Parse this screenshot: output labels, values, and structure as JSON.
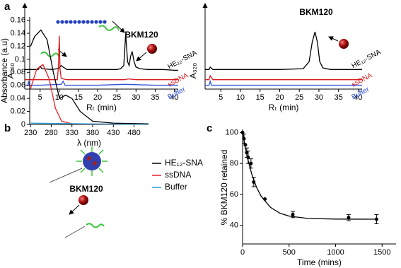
{
  "panel_labels": [
    "a",
    "b",
    "c"
  ],
  "chart_data": [
    {
      "type": "line",
      "xlabel": "Rₜ (min)",
      "ylabel": "A₂₆₀",
      "xlim": [
        1,
        41
      ],
      "ylim": [
        0,
        1
      ],
      "xticks": [
        5,
        10,
        15,
        20,
        25,
        30,
        35,
        40
      ],
      "annotations": [
        "BKM120"
      ],
      "series": [
        {
          "name": "HE₁₂-SNA",
          "color": "#000000",
          "x": [
            1,
            3,
            4.5,
            5,
            5.5,
            8,
            9.5,
            10,
            10.5,
            11,
            12,
            15,
            20,
            25,
            26,
            26.8,
            27.3,
            27.8,
            28.2,
            28.6,
            29,
            29.5,
            30,
            31,
            33,
            37,
            40,
            41
          ],
          "values": [
            0.25,
            0.25,
            0.25,
            0.29,
            0.26,
            0.25,
            0.26,
            0.27,
            0.3,
            0.28,
            0.25,
            0.25,
            0.25,
            0.25,
            0.26,
            0.3,
            0.7,
            0.35,
            0.3,
            0.42,
            0.48,
            0.35,
            0.28,
            0.26,
            0.25,
            0.25,
            0.24,
            0.24
          ]
        },
        {
          "name": "ssDNA",
          "color": "#d7191c",
          "x": [
            1,
            5,
            9.5,
            9.8,
            10,
            10.2,
            10.5,
            11,
            12,
            20,
            27,
            28,
            30,
            35,
            41
          ],
          "values": [
            0.12,
            0.12,
            0.12,
            0.3,
            0.68,
            0.25,
            0.14,
            0.13,
            0.12,
            0.12,
            0.12,
            0.13,
            0.12,
            0.12,
            0.12
          ]
        },
        {
          "name": "Buffer",
          "color": "#2b4fd8",
          "x": [
            1,
            1.8,
            2,
            2.2,
            5,
            10.5,
            11,
            11.5,
            20,
            27,
            35,
            41
          ],
          "values": [
            0.05,
            0.05,
            0.1,
            0.05,
            0.05,
            0.06,
            0.1,
            0.05,
            0.05,
            0.06,
            0.05,
            0.05
          ]
        }
      ]
    },
    {
      "type": "line",
      "xlabel": "Rₜ (min)",
      "ylabel": "A₃₂₀",
      "xlim": [
        1,
        41
      ],
      "ylim": [
        0,
        1
      ],
      "xticks": [
        5,
        10,
        15,
        20,
        25,
        30,
        35,
        40
      ],
      "annotations": [
        "BKM120"
      ],
      "series": [
        {
          "name": "HE₁₂-SNA",
          "color": "#000000",
          "x": [
            1,
            2,
            2.3,
            3,
            10,
            20,
            26,
            27.5,
            28.3,
            29,
            29.6,
            30.2,
            31,
            33,
            41
          ],
          "values": [
            0.25,
            0.25,
            0.28,
            0.25,
            0.25,
            0.25,
            0.26,
            0.35,
            0.6,
            0.73,
            0.6,
            0.35,
            0.27,
            0.25,
            0.25
          ]
        },
        {
          "name": "ssDNA",
          "color": "#d7191c",
          "x": [
            1,
            2,
            2.3,
            3,
            41
          ],
          "values": [
            0.12,
            0.12,
            0.17,
            0.12,
            0.12
          ]
        },
        {
          "name": "Buffer",
          "color": "#2b4fd8",
          "x": [
            1,
            2,
            2.3,
            2.6,
            41
          ],
          "values": [
            0.05,
            0.05,
            0.1,
            0.05,
            0.05
          ]
        }
      ]
    },
    {
      "type": "line",
      "xlabel": "λ (nm)",
      "ylabel": "Absorbance (a.u)",
      "xlim": [
        228,
        515
      ],
      "ylim": [
        0,
        0.165
      ],
      "xticks": [
        230,
        280,
        330,
        380,
        430,
        480
      ],
      "yticks": [
        0,
        0.02,
        0.04,
        0.06,
        0.08,
        0.1,
        0.12,
        0.14,
        0.16
      ],
      "annotations": [
        "BKM120"
      ],
      "legend": "right",
      "series": [
        {
          "name": "HE₁₂-SNA",
          "color": "#000000",
          "x": [
            230,
            240,
            255,
            270,
            285,
            300,
            315,
            330,
            350,
            380,
            430,
            515
          ],
          "values": [
            0.12,
            0.135,
            0.145,
            0.13,
            0.08,
            0.04,
            0.045,
            0.04,
            0.02,
            0.005,
            0.002,
            0.001
          ]
        },
        {
          "name": "ssDNA",
          "color": "#e8202a",
          "x": [
            230,
            245,
            260,
            275,
            290,
            305,
            330,
            515
          ],
          "values": [
            0.055,
            0.085,
            0.092,
            0.07,
            0.025,
            0.005,
            0.001,
            0
          ]
        },
        {
          "name": "Buffer",
          "color": "#2a9fd6",
          "x": [
            230,
            515
          ],
          "values": [
            0.002,
            0
          ]
        }
      ]
    },
    {
      "type": "scatter",
      "xlabel": "Time (mins)",
      "ylabel": "% BKM120 retained",
      "xlim": [
        0,
        1650
      ],
      "ylim": [
        28,
        102
      ],
      "xticks": [
        0,
        500,
        1000,
        1500
      ],
      "yticks": [
        40,
        60,
        80,
        100
      ],
      "series": [
        {
          "color": "#000000",
          "x": [
            0,
            15,
            30,
            45,
            60,
            90,
            120,
            240,
            540,
            1140,
            1440
          ],
          "values": [
            100,
            96,
            92,
            87,
            84,
            80,
            68,
            57,
            47,
            45,
            44
          ],
          "errors": [
            null,
            3,
            null,
            3,
            4,
            3,
            3,
            null,
            2,
            2,
            3
          ]
        }
      ],
      "fit": {
        "x": [
          0,
          50,
          100,
          150,
          200,
          300,
          400,
          500,
          700,
          1000,
          1440
        ],
        "values": [
          100,
          84.1,
          72.7,
          64.6,
          58.8,
          51.6,
          47.9,
          46,
          44.5,
          44.1,
          44
        ]
      }
    }
  ]
}
